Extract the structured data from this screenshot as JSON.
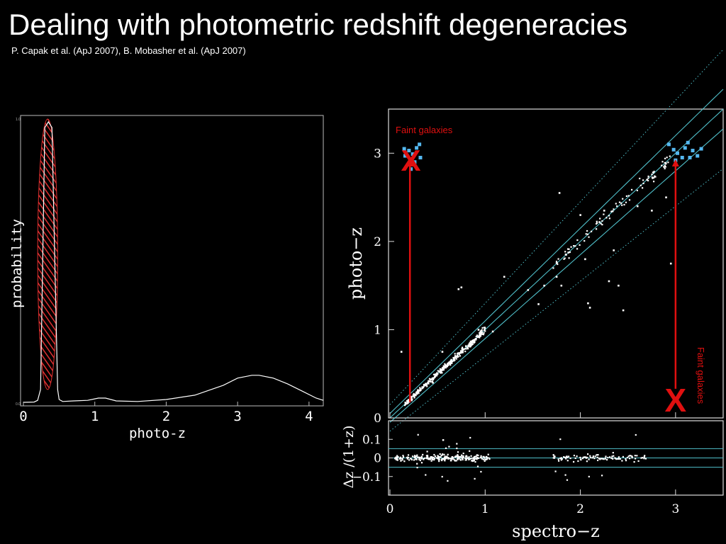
{
  "slide": {
    "title": "Dealing with photometric redshift degeneracies",
    "subtitle": "P. Capak et al. (ApJ 2007), B. Mobasher et al. (ApJ 2007)"
  },
  "colors": {
    "background": "#000000",
    "hatch": "#e03030",
    "arrow": "#e01010",
    "faint_points": "#55b8f0",
    "guide_lines": "#4fbfc9"
  },
  "chart_data": [
    {
      "type": "line",
      "xlabel": "photo-z",
      "ylabel": "probability",
      "xlim": [
        0,
        4.2
      ],
      "ylim": [
        0,
        1
      ],
      "x_ticks": [
        "0",
        "1",
        "2",
        "3",
        "4"
      ],
      "y_ticks": [
        "0.0",
        "1.0"
      ],
      "grid": false,
      "series": [
        {
          "x": [
            0,
            0.15,
            0.2,
            0.24,
            0.27,
            0.3,
            0.35,
            0.4,
            0.44,
            0.48,
            0.5,
            0.55,
            0.7,
            0.9,
            1.05,
            1.15,
            1.3,
            1.6,
            2.0,
            2.4,
            2.8,
            3.0,
            3.2,
            3.3,
            3.5,
            3.7,
            3.9,
            4.1,
            4.2
          ],
          "y": [
            0.005,
            0.006,
            0.012,
            0.05,
            0.5,
            0.97,
            0.99,
            0.97,
            0.5,
            0.05,
            0.015,
            0.008,
            0.01,
            0.012,
            0.02,
            0.02,
            0.01,
            0.008,
            0.015,
            0.03,
            0.065,
            0.09,
            0.1,
            0.1,
            0.09,
            0.07,
            0.045,
            0.02,
            0.012
          ]
        }
      ],
      "highlight_region": {
        "x_center": 0.34,
        "x_halfwidth": 0.14,
        "y_min": 0.05,
        "y_max": 1.0
      }
    },
    {
      "type": "scatter",
      "xlabel": "spectro−z",
      "ylabel": "photo−z",
      "xlim": [
        0,
        3.5
      ],
      "ylim": [
        0,
        3.5
      ],
      "x_ticks": [
        "0",
        "1",
        "2",
        "3"
      ],
      "y_ticks": [
        "0",
        "1",
        "2",
        "3"
      ],
      "grid": false,
      "guide_lines": [
        {
          "kind": "one-to-one",
          "offset": 0
        },
        {
          "kind": "solid",
          "offset": 0.05
        },
        {
          "kind": "solid",
          "offset": -0.05
        },
        {
          "kind": "dotted",
          "offset": 0.15
        },
        {
          "kind": "dotted",
          "offset": -0.15
        }
      ],
      "outlier_points": [
        [
          0.72,
          1.46
        ],
        [
          0.75,
          1.48
        ],
        [
          0.93,
          1.0
        ],
        [
          1.08,
          0.98
        ],
        [
          1.2,
          1.6
        ],
        [
          1.45,
          1.45
        ],
        [
          1.56,
          1.29
        ],
        [
          1.62,
          1.5
        ],
        [
          1.75,
          1.6
        ],
        [
          1.78,
          2.55
        ],
        [
          1.85,
          1.85
        ],
        [
          1.8,
          1.5
        ],
        [
          2.0,
          2.3
        ],
        [
          2.05,
          1.8
        ],
        [
          2.08,
          1.3
        ],
        [
          2.1,
          1.25
        ],
        [
          2.2,
          2.22
        ],
        [
          2.25,
          2.35
        ],
        [
          2.3,
          1.55
        ],
        [
          2.35,
          1.9
        ],
        [
          2.4,
          1.5
        ],
        [
          2.45,
          1.22
        ],
        [
          2.6,
          2.4
        ],
        [
          2.7,
          2.7
        ],
        [
          2.75,
          2.35
        ],
        [
          2.9,
          2.5
        ],
        [
          2.95,
          1.75
        ],
        [
          0.12,
          0.75
        ],
        [
          0.45,
          0.4
        ],
        [
          0.55,
          0.75
        ]
      ],
      "faint_galaxies": {
        "label_top": "Faint galaxies",
        "label_right": "Faint galaxies",
        "cluster_top": [
          [
            0.16,
            2.97
          ],
          [
            0.2,
            3.03
          ],
          [
            0.24,
            2.99
          ],
          [
            0.28,
            3.06
          ],
          [
            0.32,
            2.95
          ],
          [
            0.2,
            2.88
          ],
          [
            0.26,
            2.9
          ],
          [
            0.15,
            3.05
          ],
          [
            0.31,
            3.1
          ],
          [
            0.22,
            2.82
          ]
        ],
        "cluster_right": [
          [
            2.93,
            3.1
          ],
          [
            2.98,
            3.04
          ],
          [
            3.02,
            3.0
          ],
          [
            3.07,
            2.95
          ],
          [
            3.1,
            3.06
          ],
          [
            3.13,
            3.12
          ],
          [
            3.18,
            3.03
          ],
          [
            3.23,
            2.97
          ],
          [
            3.27,
            3.05
          ],
          [
            3.0,
            2.92
          ],
          [
            3.15,
            2.95
          ]
        ],
        "arrow_left": {
          "x": 0.21,
          "from_y": 0.18,
          "to_y": 2.93
        },
        "arrow_right": {
          "x": 3.0,
          "from_y": 0.33,
          "to_y": 2.93
        },
        "x_marker_top": [
          0.22,
          2.93
        ],
        "x_marker_bottom": [
          3.0,
          0.2
        ],
        "marker_glyph": "X"
      }
    },
    {
      "type": "scatter",
      "xlabel": "",
      "ylabel": "Δz /(1+z)",
      "xlim": [
        0,
        3.5
      ],
      "ylim": [
        -0.2,
        0.2
      ],
      "x_ticks": [
        "0",
        "1",
        "2",
        "3"
      ],
      "y_ticks": [
        "0.1",
        "0",
        "−0.1"
      ],
      "grid": false,
      "guide_lines": [
        {
          "kind": "solid",
          "offset": 0.05
        },
        {
          "kind": "solid",
          "offset": 0
        },
        {
          "kind": "solid",
          "offset": -0.05
        }
      ]
    }
  ]
}
